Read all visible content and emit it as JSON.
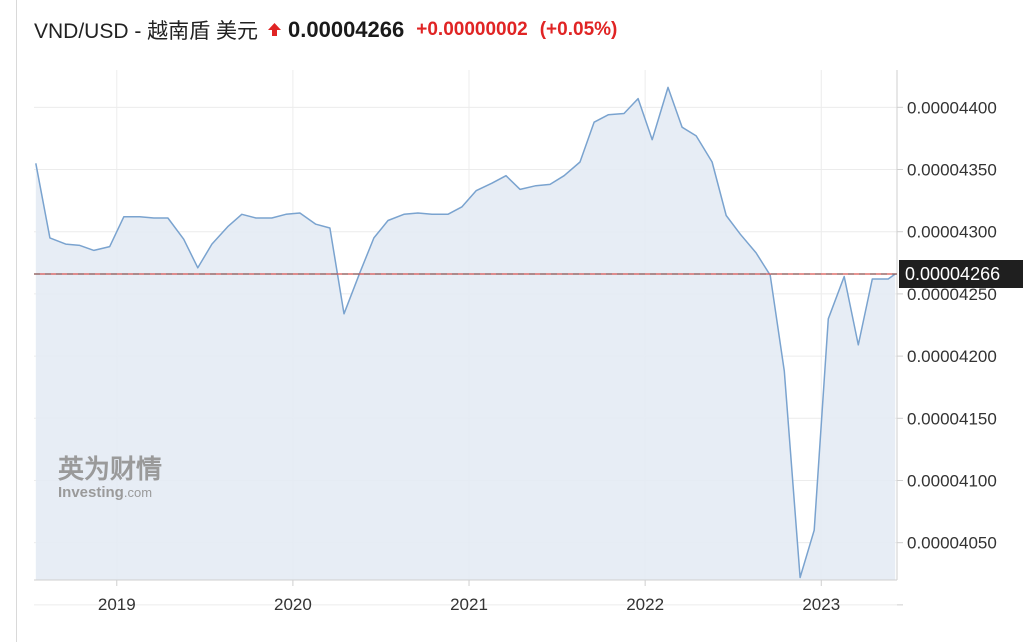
{
  "header": {
    "pair": "VND/USD - 越南盾 美元",
    "price": "0.00004266",
    "change": "+0.00000002",
    "change_pct": "(+0.05%)",
    "change_direction": "up"
  },
  "colors": {
    "up": "#e02424",
    "line": "#7aa3cf",
    "fill": "#e4ebf4",
    "grid": "#ececec",
    "axis": "#cfcfcf",
    "current_line": "#d9534f",
    "current_dash": "#666666",
    "current_label_bg": "#1f1f1f"
  },
  "watermark": {
    "cn": "英为财情",
    "en": "Investing",
    "domain": ".com"
  },
  "chart_data": {
    "type": "area",
    "title": "",
    "xlabel": "",
    "ylabel": "",
    "x_tick_labels": [
      "2019",
      "2020",
      "2021",
      "2022",
      "2023"
    ],
    "x_ticks": [
      2019.0,
      2020.0,
      2021.0,
      2022.0,
      2023.0
    ],
    "y_ticks": [
      4e-05,
      4.05e-05,
      4.1e-05,
      4.15e-05,
      4.2e-05,
      4.25e-05,
      4.3e-05,
      4.35e-05,
      4.4e-05
    ],
    "y_tick_labels": [
      "",
      "0.00004050",
      "0.00004100",
      "0.00004150",
      "0.00004200",
      "0.00004250",
      "0.00004300",
      "0.00004350",
      "0.00004400"
    ],
    "xlim": [
      2018.53,
      2023.43
    ],
    "ylim": [
      4.02e-05,
      4.43e-05
    ],
    "grid": true,
    "current_value": 4.266e-05,
    "current_label": "0.00004266",
    "series": [
      {
        "x": [
          2018.54,
          2018.62,
          2018.71,
          2018.79,
          2018.87,
          2018.96,
          2019.04,
          2019.13,
          2019.21,
          2019.29,
          2019.38,
          2019.46,
          2019.54,
          2019.63,
          2019.71,
          2019.79,
          2019.88,
          2019.96,
          2020.04,
          2020.13,
          2020.21,
          2020.29,
          2020.38,
          2020.46,
          2020.54,
          2020.63,
          2020.71,
          2020.79,
          2020.88,
          2020.96,
          2021.04,
          2021.13,
          2021.21,
          2021.29,
          2021.38,
          2021.46,
          2021.54,
          2021.63,
          2021.71,
          2021.79,
          2021.88,
          2021.96,
          2022.04,
          2022.13,
          2022.21,
          2022.29,
          2022.38,
          2022.46,
          2022.54,
          2022.63,
          2022.71,
          2022.79,
          2022.88,
          2022.96,
          2023.04,
          2023.13,
          2023.21,
          2023.29,
          2023.38,
          2023.42
        ],
        "values": [
          4.355e-05,
          4.295e-05,
          4.29e-05,
          4.289e-05,
          4.285e-05,
          4.288e-05,
          4.312e-05,
          4.312e-05,
          4.311e-05,
          4.311e-05,
          4.294e-05,
          4.271e-05,
          4.29e-05,
          4.304e-05,
          4.314e-05,
          4.311e-05,
          4.311e-05,
          4.314e-05,
          4.315e-05,
          4.306e-05,
          4.303e-05,
          4.234e-05,
          4.267e-05,
          4.295e-05,
          4.309e-05,
          4.314e-05,
          4.315e-05,
          4.314e-05,
          4.314e-05,
          4.32e-05,
          4.333e-05,
          4.339e-05,
          4.345e-05,
          4.334e-05,
          4.337e-05,
          4.338e-05,
          4.345e-05,
          4.356e-05,
          4.388e-05,
          4.394e-05,
          4.395e-05,
          4.407e-05,
          4.374e-05,
          4.416e-05,
          4.384e-05,
          4.377e-05,
          4.356e-05,
          4.313e-05,
          4.298e-05,
          4.283e-05,
          4.265e-05,
          4.188e-05,
          4.022e-05,
          4.06e-05,
          4.23e-05,
          4.264e-05,
          4.209e-05,
          4.262e-05,
          4.262e-05,
          4.266e-05
        ]
      }
    ]
  }
}
